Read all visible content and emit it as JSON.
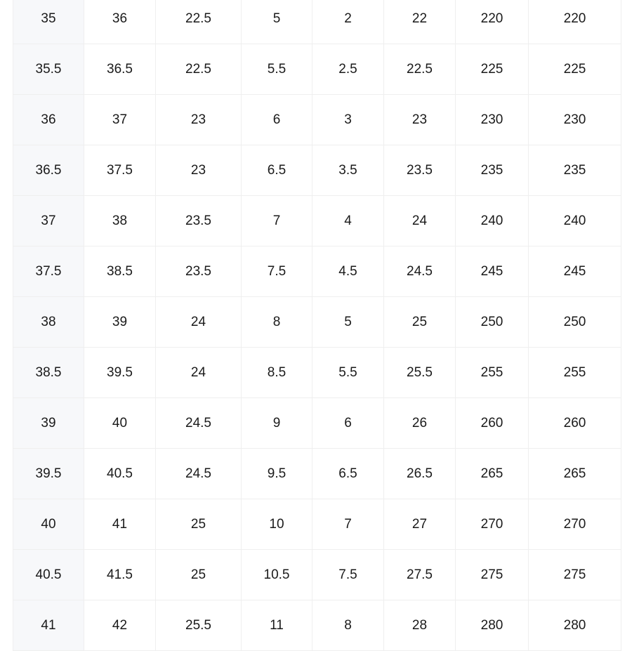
{
  "table": {
    "rows": [
      [
        "35",
        "36",
        "22.5",
        "5",
        "2",
        "22",
        "220",
        "220"
      ],
      [
        "35.5",
        "36.5",
        "22.5",
        "5.5",
        "2.5",
        "22.5",
        "225",
        "225"
      ],
      [
        "36",
        "37",
        "23",
        "6",
        "3",
        "23",
        "230",
        "230"
      ],
      [
        "36.5",
        "37.5",
        "23",
        "6.5",
        "3.5",
        "23.5",
        "235",
        "235"
      ],
      [
        "37",
        "38",
        "23.5",
        "7",
        "4",
        "24",
        "240",
        "240"
      ],
      [
        "37.5",
        "38.5",
        "23.5",
        "7.5",
        "4.5",
        "24.5",
        "245",
        "245"
      ],
      [
        "38",
        "39",
        "24",
        "8",
        "5",
        "25",
        "250",
        "250"
      ],
      [
        "38.5",
        "39.5",
        "24",
        "8.5",
        "5.5",
        "25.5",
        "255",
        "255"
      ],
      [
        "39",
        "40",
        "24.5",
        "9",
        "6",
        "26",
        "260",
        "260"
      ],
      [
        "39.5",
        "40.5",
        "24.5",
        "9.5",
        "6.5",
        "26.5",
        "265",
        "265"
      ],
      [
        "40",
        "41",
        "25",
        "10",
        "7",
        "27",
        "270",
        "270"
      ],
      [
        "40.5",
        "41.5",
        "25",
        "10.5",
        "7.5",
        "27.5",
        "275",
        "275"
      ],
      [
        "41",
        "42",
        "25.5",
        "11",
        "8",
        "28",
        "280",
        "280"
      ]
    ]
  }
}
